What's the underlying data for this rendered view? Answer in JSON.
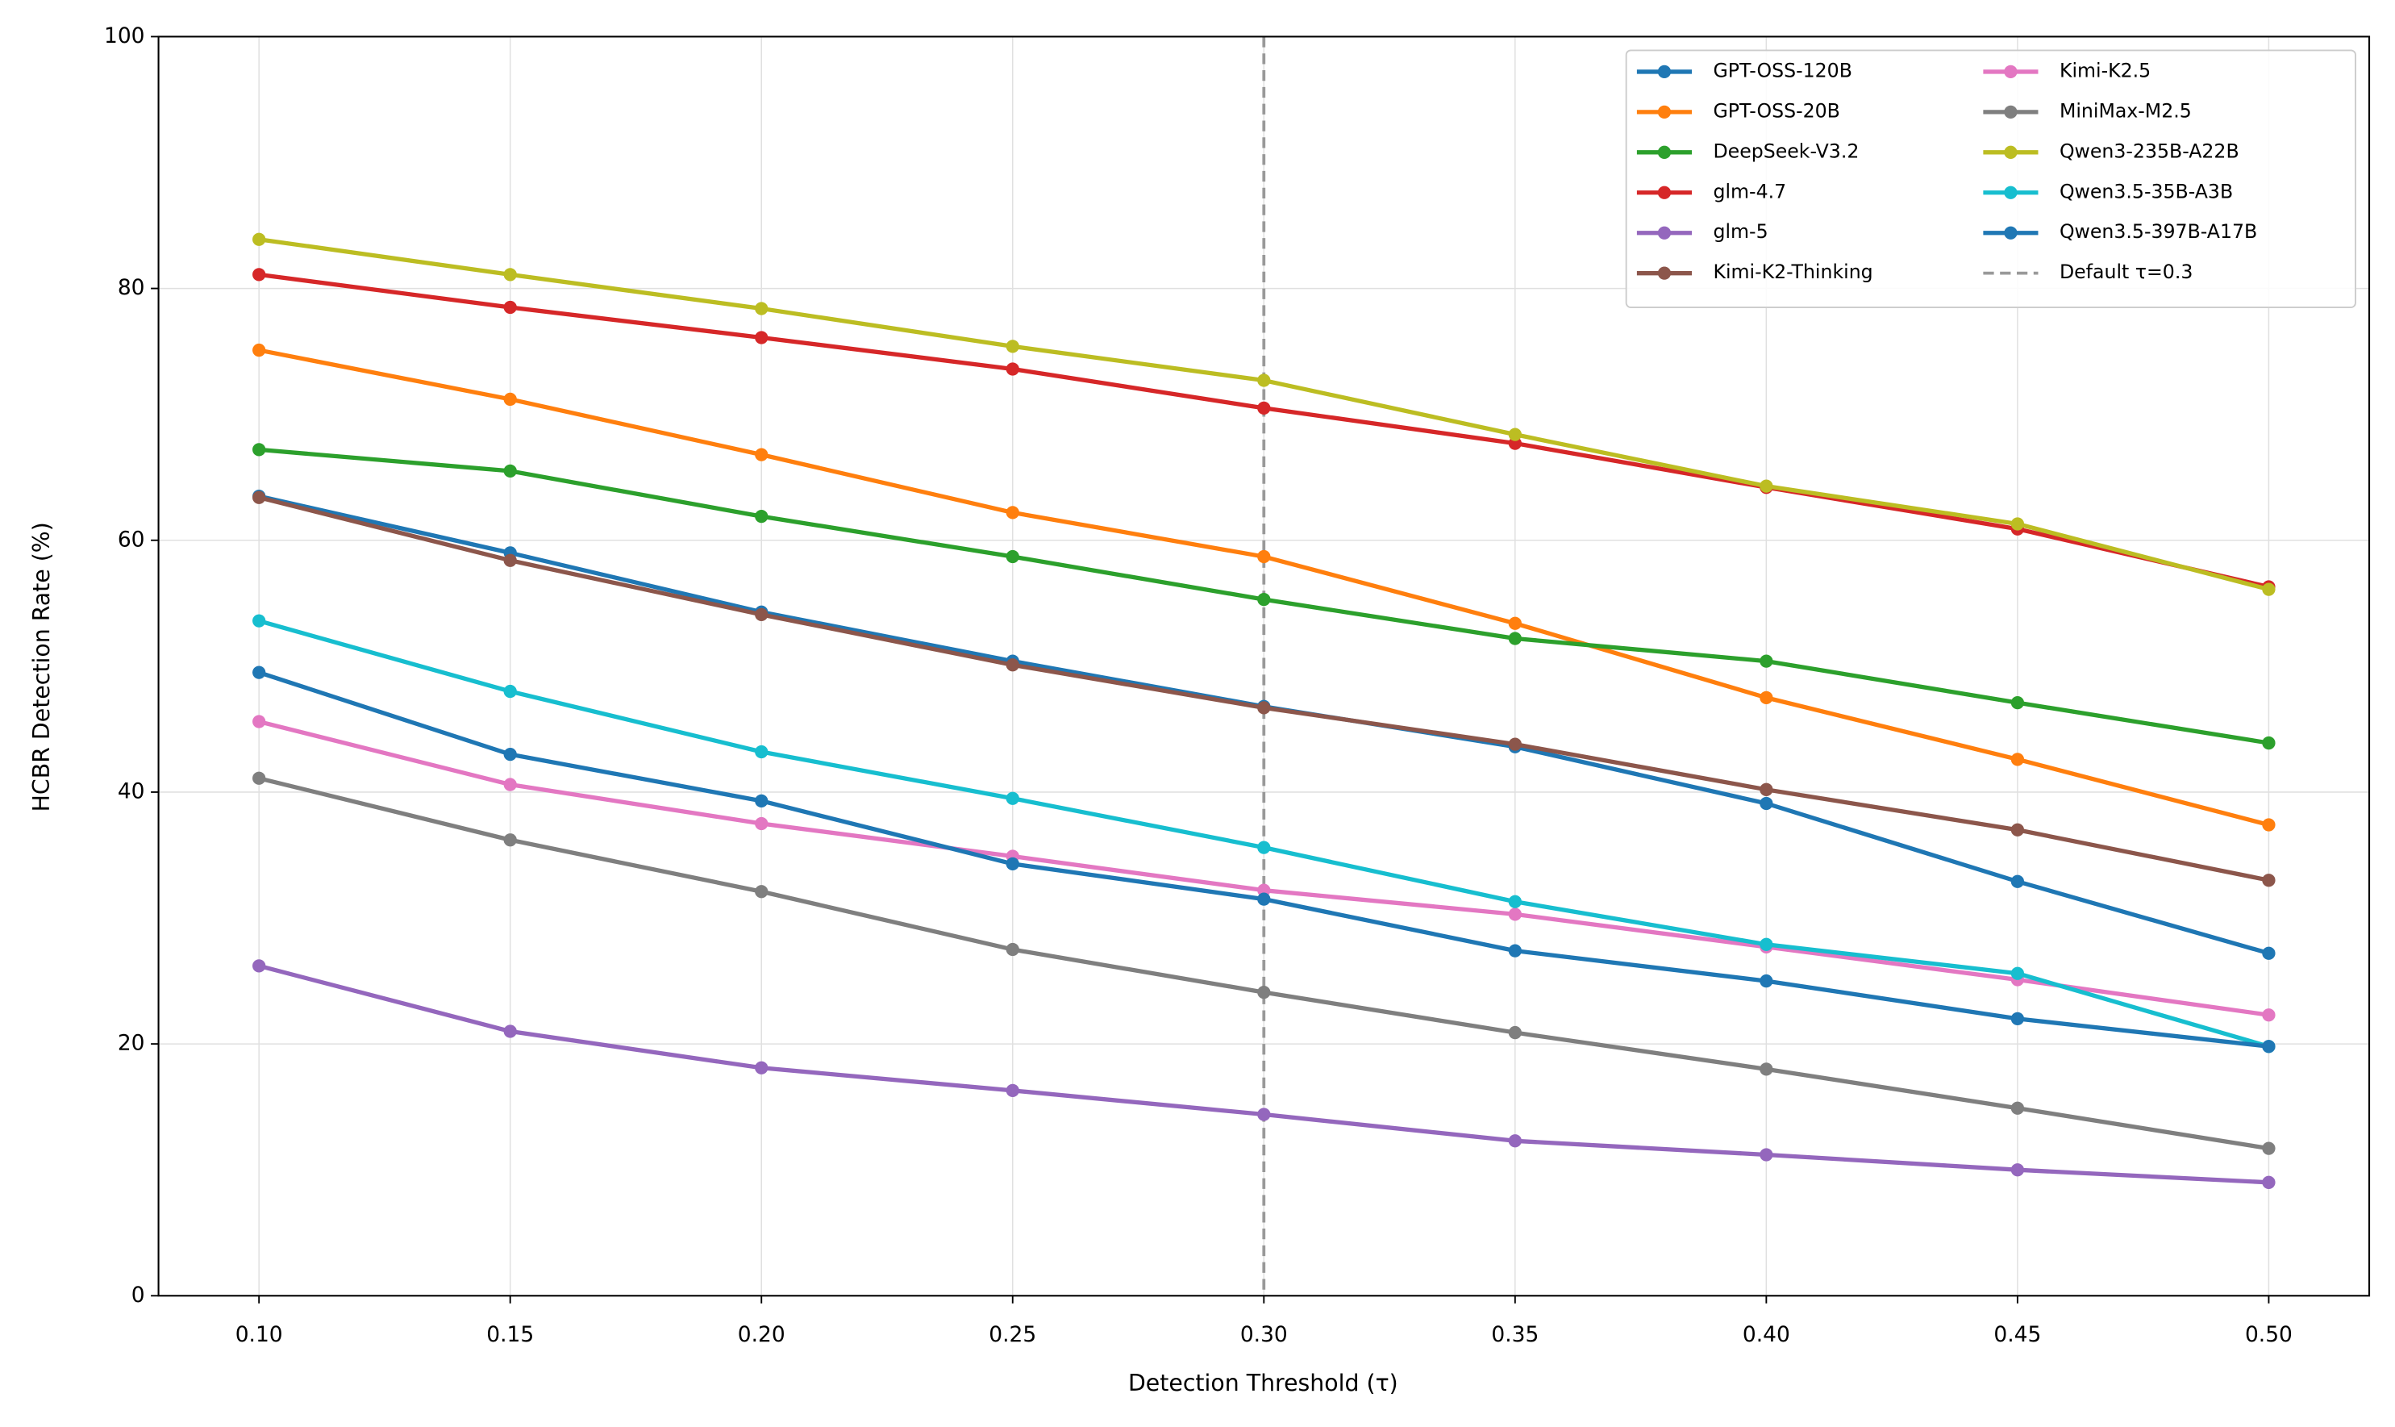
{
  "chart_data": {
    "type": "line",
    "x_label": "Detection Threshold (τ)",
    "y_label": "HCBR Detection Rate (%)",
    "x": [
      0.1,
      0.15,
      0.2,
      0.25,
      0.3,
      0.35,
      0.4,
      0.45,
      0.5
    ],
    "xlim": [
      0.08,
      0.52
    ],
    "ylim": [
      0,
      100
    ],
    "xticks": [
      {
        "value": 0.1,
        "label": "0.10"
      },
      {
        "value": 0.15,
        "label": "0.15"
      },
      {
        "value": 0.2,
        "label": "0.20"
      },
      {
        "value": 0.25,
        "label": "0.25"
      },
      {
        "value": 0.3,
        "label": "0.30"
      },
      {
        "value": 0.35,
        "label": "0.35"
      },
      {
        "value": 0.4,
        "label": "0.40"
      },
      {
        "value": 0.45,
        "label": "0.45"
      },
      {
        "value": 0.5,
        "label": "0.50"
      }
    ],
    "yticks": [
      0,
      20,
      40,
      60,
      80,
      100
    ],
    "grid": true,
    "legend": "upper right",
    "legend_columns": 2,
    "series": [
      {
        "name": "GPT-OSS-120B",
        "color": "#1f77b4",
        "values": [
          63.5,
          59.0,
          54.3,
          50.4,
          46.8,
          43.6,
          39.1,
          32.9,
          27.2
        ]
      },
      {
        "name": "GPT-OSS-20B",
        "color": "#ff7f0e",
        "values": [
          75.1,
          71.2,
          66.8,
          62.2,
          58.7,
          53.4,
          47.5,
          42.6,
          37.4
        ]
      },
      {
        "name": "DeepSeek-V3.2",
        "color": "#2ca02c",
        "values": [
          67.2,
          65.5,
          61.9,
          58.7,
          55.3,
          52.2,
          50.4,
          47.1,
          43.9
        ]
      },
      {
        "name": "glm-4.7",
        "color": "#d62728",
        "values": [
          81.1,
          78.5,
          76.1,
          73.6,
          70.5,
          67.7,
          64.2,
          60.9,
          56.3
        ]
      },
      {
        "name": "glm-5",
        "color": "#9467bd",
        "values": [
          26.2,
          21.0,
          18.1,
          16.3,
          14.4,
          12.3,
          11.2,
          10.0,
          9.0
        ]
      },
      {
        "name": "Kimi-K2-Thinking",
        "color": "#8c564b",
        "values": [
          63.4,
          58.4,
          54.1,
          50.1,
          46.7,
          43.8,
          40.2,
          37.0,
          33.0
        ]
      },
      {
        "name": "Kimi-K2.5",
        "color": "#e377c2",
        "values": [
          45.6,
          40.6,
          37.5,
          34.9,
          32.2,
          30.3,
          27.7,
          25.1,
          22.3
        ]
      },
      {
        "name": "MiniMax-M2.5",
        "color": "#7f7f7f",
        "values": [
          41.1,
          36.2,
          32.1,
          27.5,
          24.1,
          20.9,
          18.0,
          14.9,
          11.7
        ]
      },
      {
        "name": "Qwen3-235B-A22B",
        "color": "#bcbd22",
        "values": [
          83.9,
          81.1,
          78.4,
          75.4,
          72.7,
          68.4,
          64.3,
          61.3,
          56.1
        ]
      },
      {
        "name": "Qwen3.5-35B-A3B",
        "color": "#17becf",
        "values": [
          53.6,
          48.0,
          43.2,
          39.5,
          35.6,
          31.3,
          27.9,
          25.6,
          19.8
        ]
      },
      {
        "name": "Qwen3.5-397B-A17B",
        "color": "#1f77b4",
        "values": [
          49.5,
          43.0,
          39.3,
          34.3,
          31.5,
          27.4,
          25.0,
          22.0,
          19.8
        ]
      }
    ],
    "reference_line": {
      "x": 0.3,
      "label": "Default τ=0.3",
      "color": "#999999",
      "style": "dashed"
    }
  }
}
